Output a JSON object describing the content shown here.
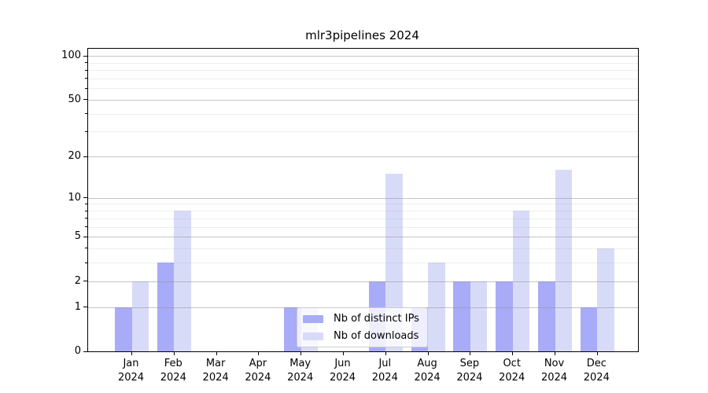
{
  "chart_data": {
    "type": "bar",
    "title": "mlr3pipelines 2024",
    "x_month_labels": [
      "Jan",
      "Feb",
      "Mar",
      "Apr",
      "May",
      "Jun",
      "Jul",
      "Aug",
      "Sep",
      "Oct",
      "Nov",
      "Dec"
    ],
    "x_year_label": "2024",
    "series": [
      {
        "name": "Nb of distinct IPs",
        "color": "#a8abf8",
        "values": [
          1,
          3,
          0,
          0,
          1,
          0,
          2,
          1,
          2,
          2,
          2,
          1
        ]
      },
      {
        "name": "Nb of downloads",
        "color": "#d8dbf8",
        "values": [
          2,
          8,
          0,
          0,
          1,
          0,
          15,
          3,
          2,
          8,
          16,
          4
        ]
      }
    ],
    "y_axis": {
      "scale": "log1p",
      "range": [
        0,
        100
      ],
      "major_ticks": [
        0,
        1,
        2,
        5,
        10,
        20,
        50,
        100
      ],
      "minor_ticks": [
        3,
        4,
        6,
        7,
        8,
        9,
        30,
        40,
        60,
        70,
        80,
        90
      ]
    },
    "grid": {
      "major_color": "rgba(150,150,150,0.55)",
      "minor_color": "rgba(150,150,150,0.16)"
    },
    "legend_position": "lower center"
  },
  "colors": {
    "axis": "#000000",
    "background": "#ffffff"
  }
}
